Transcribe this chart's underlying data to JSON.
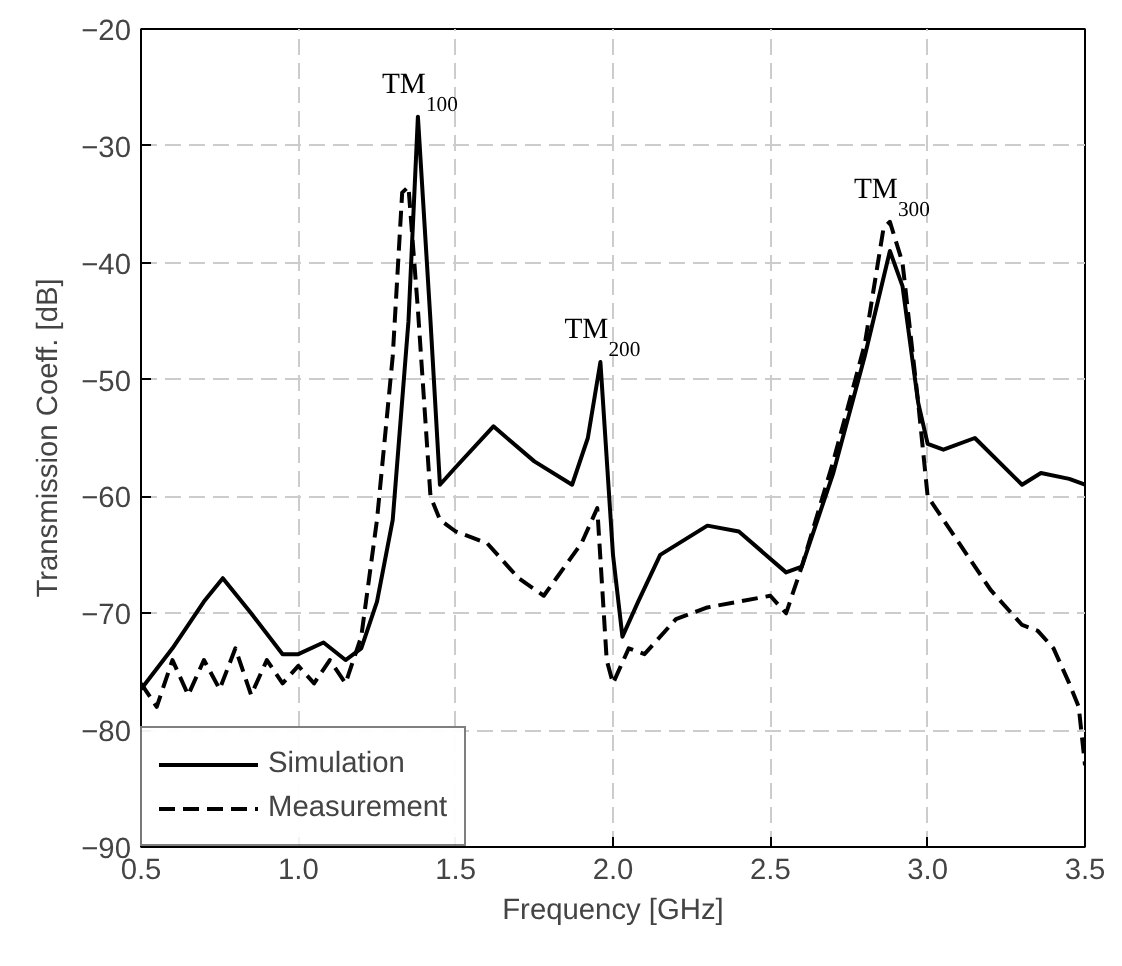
{
  "chart_data": {
    "type": "line",
    "xlabel": "Frequency [GHz]",
    "ylabel": "Transmission Coeff. [dB]",
    "xlim": [
      0.5,
      3.5
    ],
    "ylim": [
      -90,
      -20
    ],
    "xticks": [
      {
        "value": 0.5,
        "label": "0.5"
      },
      {
        "value": 1.0,
        "label": "1.0"
      },
      {
        "value": 1.5,
        "label": "1.5"
      },
      {
        "value": 2.0,
        "label": "2.0"
      },
      {
        "value": 2.5,
        "label": "2.5"
      },
      {
        "value": 3.0,
        "label": "3.0"
      },
      {
        "value": 3.5,
        "label": "3.5"
      }
    ],
    "yticks": [
      -90,
      -80,
      -70,
      -60,
      -50,
      -40,
      -30,
      -20
    ],
    "grid": true,
    "legend": "bottom left",
    "annotations": [
      {
        "text": "TM$_{100}$",
        "x": 1.38,
        "y": -27.5
      },
      {
        "text": "TM$_{200}$",
        "x": 1.96,
        "y": -48.5
      },
      {
        "text": "TM$_{300}$",
        "x": 2.88,
        "y": -36.5
      }
    ],
    "series": [
      {
        "name": "Simulation",
        "color": "#000000",
        "line_style": "solid",
        "x": [
          0.5,
          0.6,
          0.7,
          0.76,
          0.85,
          0.95,
          1.0,
          1.08,
          1.15,
          1.2,
          1.25,
          1.3,
          1.35,
          1.38,
          1.42,
          1.45,
          1.5,
          1.62,
          1.75,
          1.87,
          1.92,
          1.96,
          2.0,
          2.03,
          2.08,
          2.15,
          2.3,
          2.4,
          2.55,
          2.6,
          2.7,
          2.8,
          2.88,
          2.92,
          2.97,
          3.0,
          3.05,
          3.15,
          3.3,
          3.36,
          3.45,
          3.5
        ],
        "values": [
          -76.5,
          -73,
          -69,
          -67,
          -70,
          -73.5,
          -73.5,
          -72.5,
          -74,
          -73,
          -69,
          -62,
          -45,
          -27.5,
          -45,
          -59,
          -57.5,
          -54,
          -57,
          -59,
          -55,
          -48.5,
          -65,
          -72,
          -69,
          -65,
          -62.5,
          -63,
          -66.5,
          -66,
          -58,
          -48,
          -39,
          -42,
          -52,
          -55.5,
          -56,
          -55,
          -59,
          -58,
          -58.5,
          -59
        ]
      },
      {
        "name": "Measurement",
        "color": "#000000",
        "line_style": "dashed",
        "x": [
          0.5,
          0.55,
          0.6,
          0.65,
          0.7,
          0.75,
          0.8,
          0.85,
          0.9,
          0.95,
          1.0,
          1.05,
          1.1,
          1.15,
          1.2,
          1.25,
          1.3,
          1.33,
          1.35,
          1.38,
          1.42,
          1.45,
          1.5,
          1.6,
          1.7,
          1.78,
          1.82,
          1.9,
          1.95,
          1.98,
          2.0,
          2.05,
          2.1,
          2.2,
          2.3,
          2.4,
          2.5,
          2.55,
          2.6,
          2.7,
          2.8,
          2.86,
          2.88,
          2.92,
          2.97,
          3.0,
          3.1,
          3.2,
          3.3,
          3.35,
          3.4,
          3.45,
          3.48,
          3.5
        ],
        "values": [
          -76,
          -78,
          -74,
          -77,
          -74,
          -76.5,
          -73,
          -77,
          -74,
          -76,
          -74.5,
          -76,
          -74,
          -76,
          -72,
          -62,
          -48,
          -34,
          -33.5,
          -44,
          -60,
          -62,
          -63,
          -64,
          -67,
          -68.5,
          -67,
          -64,
          -61,
          -74,
          -76,
          -73,
          -73.5,
          -70.5,
          -69.5,
          -69,
          -68.5,
          -70,
          -66,
          -57,
          -47,
          -37,
          -36.5,
          -40,
          -52,
          -60,
          -64,
          -68,
          -71,
          -71.5,
          -73,
          -76,
          -78,
          -83
        ]
      }
    ]
  }
}
